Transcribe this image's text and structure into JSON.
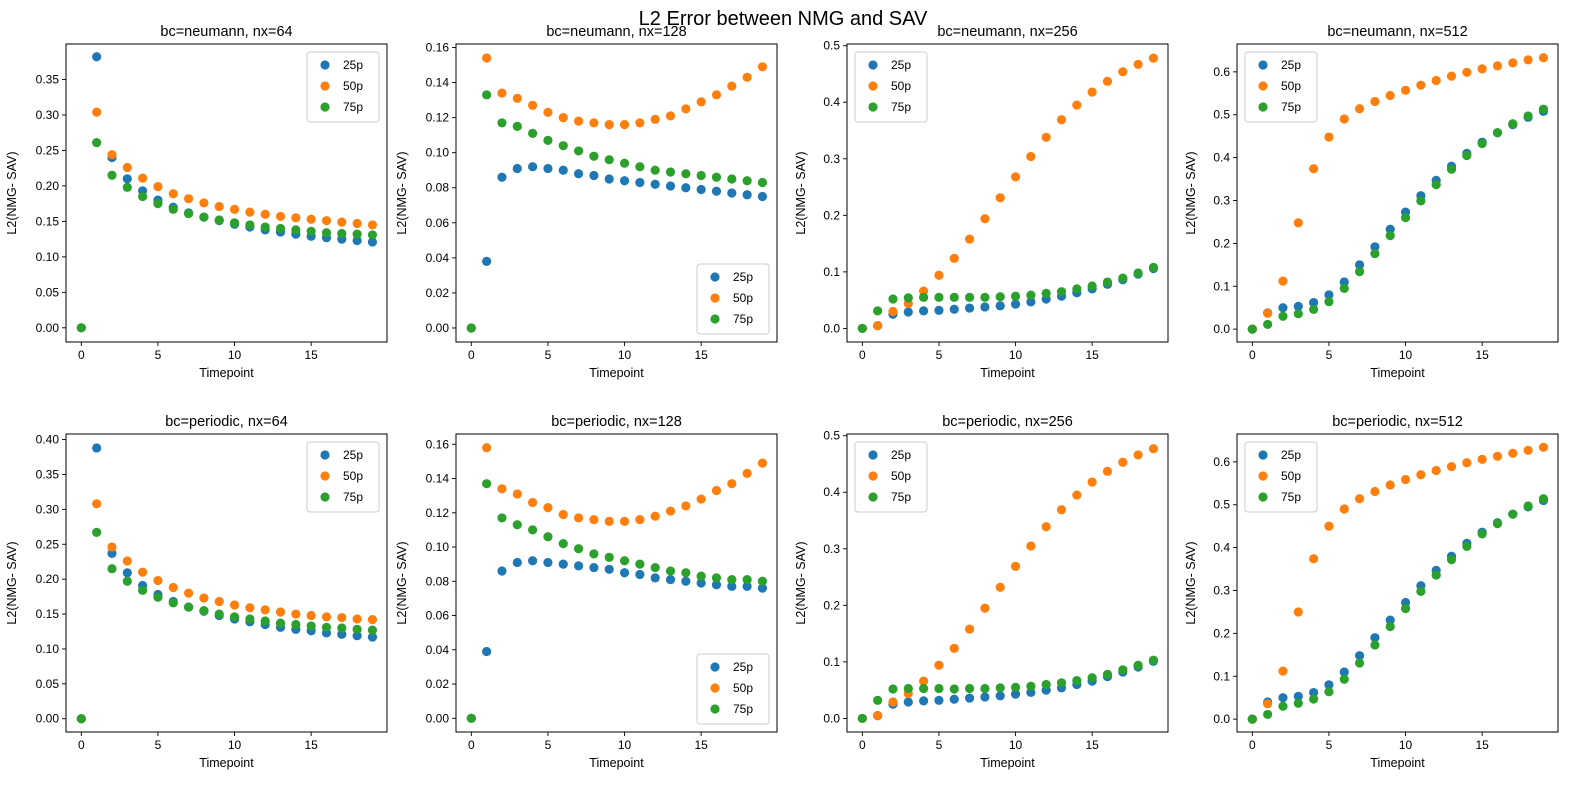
{
  "figure": {
    "suptitle": "L2 Error between NMG and SAV"
  },
  "colors": {
    "25p": "#1f77b4",
    "50p": "#ff7f0e",
    "75p": "#2ca02c"
  },
  "chart_data": [
    {
      "type": "scatter",
      "title": "bc=neumann, nx=64",
      "xlabel": "Timepoint",
      "ylabel": "L2(NMG- SAV)",
      "xlim": [
        -1,
        19.95
      ],
      "ylim": [
        -0.02,
        0.4
      ],
      "xticks": [
        0,
        5,
        10,
        15
      ],
      "yticks": [
        0,
        0.05,
        0.1,
        0.15,
        0.2,
        0.25,
        0.3,
        0.35
      ],
      "ytick_decimals": 2,
      "legend": "top-right",
      "x": [
        0,
        1,
        2,
        3,
        4,
        5,
        6,
        7,
        8,
        9,
        10,
        11,
        12,
        13,
        14,
        15,
        16,
        17,
        18,
        19
      ],
      "series": [
        {
          "name": "25p",
          "values": [
            0.0,
            0.382,
            0.24,
            0.21,
            0.193,
            0.18,
            0.17,
            0.162,
            0.156,
            0.151,
            0.146,
            0.142,
            0.138,
            0.135,
            0.132,
            0.129,
            0.127,
            0.125,
            0.123,
            0.121
          ]
        },
        {
          "name": "50p",
          "values": [
            0.0,
            0.304,
            0.244,
            0.226,
            0.211,
            0.199,
            0.189,
            0.182,
            0.176,
            0.171,
            0.167,
            0.163,
            0.16,
            0.157,
            0.155,
            0.153,
            0.151,
            0.149,
            0.147,
            0.145
          ]
        },
        {
          "name": "75p",
          "values": [
            0.0,
            0.261,
            0.215,
            0.198,
            0.185,
            0.175,
            0.167,
            0.161,
            0.156,
            0.152,
            0.148,
            0.145,
            0.142,
            0.14,
            0.138,
            0.136,
            0.134,
            0.133,
            0.132,
            0.131
          ]
        }
      ]
    },
    {
      "type": "scatter",
      "title": "bc=neumann, nx=128",
      "xlabel": "Timepoint",
      "ylabel": "L2(NMG- SAV)",
      "xlim": [
        -1,
        19.95
      ],
      "ylim": [
        -0.008,
        0.162
      ],
      "xticks": [
        0,
        5,
        10,
        15
      ],
      "yticks": [
        0,
        0.02,
        0.04,
        0.06,
        0.08,
        0.1,
        0.12,
        0.14,
        0.16
      ],
      "ytick_decimals": 2,
      "legend": "bottom-right",
      "x": [
        0,
        1,
        2,
        3,
        4,
        5,
        6,
        7,
        8,
        9,
        10,
        11,
        12,
        13,
        14,
        15,
        16,
        17,
        18,
        19
      ],
      "series": [
        {
          "name": "25p",
          "values": [
            0.0,
            0.038,
            0.086,
            0.091,
            0.092,
            0.091,
            0.09,
            0.088,
            0.087,
            0.085,
            0.084,
            0.083,
            0.082,
            0.081,
            0.08,
            0.079,
            0.078,
            0.077,
            0.076,
            0.075
          ]
        },
        {
          "name": "50p",
          "values": [
            0.0,
            0.154,
            0.134,
            0.131,
            0.127,
            0.123,
            0.12,
            0.118,
            0.117,
            0.116,
            0.116,
            0.117,
            0.119,
            0.121,
            0.125,
            0.129,
            0.133,
            0.138,
            0.143,
            0.149
          ]
        },
        {
          "name": "75p",
          "values": [
            0.0,
            0.133,
            0.117,
            0.115,
            0.111,
            0.107,
            0.104,
            0.101,
            0.098,
            0.096,
            0.094,
            0.092,
            0.09,
            0.089,
            0.088,
            0.087,
            0.086,
            0.085,
            0.084,
            0.083
          ]
        }
      ]
    },
    {
      "type": "scatter",
      "title": "bc=neumann, nx=256",
      "xlabel": "Timepoint",
      "ylabel": "L2(NMG- SAV)",
      "xlim": [
        -1,
        19.95
      ],
      "ylim": [
        -0.024,
        0.503
      ],
      "xticks": [
        0,
        5,
        10,
        15
      ],
      "yticks": [
        0,
        0.1,
        0.2,
        0.3,
        0.4,
        0.5
      ],
      "ytick_decimals": 1,
      "legend": "top-left",
      "x": [
        0,
        1,
        2,
        3,
        4,
        5,
        6,
        7,
        8,
        9,
        10,
        11,
        12,
        13,
        14,
        15,
        16,
        17,
        18,
        19
      ],
      "series": [
        {
          "name": "25p",
          "values": [
            0.0,
            0.005,
            0.025,
            0.029,
            0.031,
            0.032,
            0.034,
            0.036,
            0.038,
            0.04,
            0.043,
            0.047,
            0.052,
            0.057,
            0.063,
            0.07,
            0.078,
            0.086,
            0.096,
            0.106
          ]
        },
        {
          "name": "50p",
          "values": [
            0.0,
            0.005,
            0.03,
            0.044,
            0.066,
            0.094,
            0.124,
            0.158,
            0.194,
            0.231,
            0.268,
            0.304,
            0.338,
            0.369,
            0.395,
            0.418,
            0.437,
            0.454,
            0.467,
            0.478
          ]
        },
        {
          "name": "75p",
          "values": [
            0.0,
            0.031,
            0.052,
            0.054,
            0.055,
            0.055,
            0.055,
            0.055,
            0.055,
            0.056,
            0.057,
            0.059,
            0.062,
            0.065,
            0.07,
            0.075,
            0.082,
            0.089,
            0.098,
            0.108
          ]
        }
      ]
    },
    {
      "type": "scatter",
      "title": "bc=neumann, nx=512",
      "xlabel": "Timepoint",
      "ylabel": "L2(NMG- SAV)",
      "xlim": [
        -1,
        19.95
      ],
      "ylim": [
        -0.03,
        0.665
      ],
      "xticks": [
        0,
        5,
        10,
        15
      ],
      "yticks": [
        0,
        0.1,
        0.2,
        0.3,
        0.4,
        0.5,
        0.6
      ],
      "ytick_decimals": 1,
      "legend": "top-left",
      "x": [
        0,
        1,
        2,
        3,
        4,
        5,
        6,
        7,
        8,
        9,
        10,
        11,
        12,
        13,
        14,
        15,
        16,
        17,
        18,
        19
      ],
      "series": [
        {
          "name": "25p",
          "values": [
            0.0,
            0.038,
            0.05,
            0.053,
            0.062,
            0.08,
            0.11,
            0.15,
            0.192,
            0.233,
            0.273,
            0.311,
            0.347,
            0.38,
            0.41,
            0.436,
            0.458,
            0.477,
            0.494,
            0.508
          ]
        },
        {
          "name": "50p",
          "values": [
            0.0,
            0.037,
            0.112,
            0.248,
            0.374,
            0.448,
            0.49,
            0.514,
            0.531,
            0.545,
            0.557,
            0.569,
            0.58,
            0.59,
            0.599,
            0.607,
            0.614,
            0.621,
            0.628,
            0.633
          ]
        },
        {
          "name": "75p",
          "values": [
            0.0,
            0.011,
            0.03,
            0.036,
            0.046,
            0.064,
            0.095,
            0.134,
            0.176,
            0.218,
            0.26,
            0.299,
            0.337,
            0.373,
            0.405,
            0.433,
            0.458,
            0.479,
            0.497,
            0.513
          ]
        }
      ]
    },
    {
      "type": "scatter",
      "title": "bc=periodic, nx=64",
      "xlabel": "Timepoint",
      "ylabel": "L2(NMG- SAV)",
      "xlim": [
        -1,
        19.95
      ],
      "ylim": [
        -0.019,
        0.408
      ],
      "xticks": [
        0,
        5,
        10,
        15
      ],
      "yticks": [
        0,
        0.05,
        0.1,
        0.15,
        0.2,
        0.25,
        0.3,
        0.35,
        0.4
      ],
      "ytick_decimals": 2,
      "legend": "top-right",
      "x": [
        0,
        1,
        2,
        3,
        4,
        5,
        6,
        7,
        8,
        9,
        10,
        11,
        12,
        13,
        14,
        15,
        16,
        17,
        18,
        19
      ],
      "series": [
        {
          "name": "25p",
          "values": [
            0.0,
            0.388,
            0.237,
            0.209,
            0.191,
            0.178,
            0.168,
            0.16,
            0.154,
            0.148,
            0.143,
            0.139,
            0.135,
            0.131,
            0.128,
            0.126,
            0.123,
            0.121,
            0.119,
            0.117
          ]
        },
        {
          "name": "50p",
          "values": [
            0.0,
            0.308,
            0.246,
            0.226,
            0.21,
            0.198,
            0.188,
            0.18,
            0.173,
            0.168,
            0.163,
            0.159,
            0.156,
            0.153,
            0.15,
            0.148,
            0.146,
            0.145,
            0.143,
            0.142
          ]
        },
        {
          "name": "75p",
          "values": [
            0.0,
            0.267,
            0.215,
            0.197,
            0.184,
            0.174,
            0.166,
            0.16,
            0.155,
            0.15,
            0.146,
            0.143,
            0.14,
            0.137,
            0.135,
            0.133,
            0.131,
            0.13,
            0.128,
            0.127
          ]
        }
      ]
    },
    {
      "type": "scatter",
      "title": "bc=periodic, nx=128",
      "xlabel": "Timepoint",
      "ylabel": "L2(NMG- SAV)",
      "xlim": [
        -1,
        19.95
      ],
      "ylim": [
        -0.008,
        0.166
      ],
      "xticks": [
        0,
        5,
        10,
        15
      ],
      "yticks": [
        0,
        0.02,
        0.04,
        0.06,
        0.08,
        0.1,
        0.12,
        0.14,
        0.16
      ],
      "ytick_decimals": 2,
      "legend": "bottom-right",
      "x": [
        0,
        1,
        2,
        3,
        4,
        5,
        6,
        7,
        8,
        9,
        10,
        11,
        12,
        13,
        14,
        15,
        16,
        17,
        18,
        19
      ],
      "series": [
        {
          "name": "25p",
          "values": [
            0.0,
            0.039,
            0.086,
            0.091,
            0.092,
            0.091,
            0.09,
            0.089,
            0.088,
            0.087,
            0.085,
            0.084,
            0.082,
            0.081,
            0.08,
            0.079,
            0.078,
            0.077,
            0.077,
            0.076
          ]
        },
        {
          "name": "50p",
          "values": [
            0.0,
            0.158,
            0.134,
            0.131,
            0.126,
            0.123,
            0.119,
            0.117,
            0.116,
            0.115,
            0.115,
            0.116,
            0.118,
            0.121,
            0.124,
            0.128,
            0.133,
            0.137,
            0.143,
            0.149
          ]
        },
        {
          "name": "75p",
          "values": [
            0.0,
            0.137,
            0.117,
            0.113,
            0.11,
            0.106,
            0.102,
            0.099,
            0.096,
            0.094,
            0.092,
            0.09,
            0.088,
            0.086,
            0.085,
            0.083,
            0.082,
            0.081,
            0.081,
            0.08
          ]
        }
      ]
    },
    {
      "type": "scatter",
      "title": "bc=periodic, nx=256",
      "xlabel": "Timepoint",
      "ylabel": "L2(NMG- SAV)",
      "xlim": [
        -1,
        19.95
      ],
      "ylim": [
        -0.024,
        0.503
      ],
      "xticks": [
        0,
        5,
        10,
        15
      ],
      "yticks": [
        0,
        0.1,
        0.2,
        0.3,
        0.4,
        0.5
      ],
      "ytick_decimals": 1,
      "legend": "top-left",
      "x": [
        0,
        1,
        2,
        3,
        4,
        5,
        6,
        7,
        8,
        9,
        10,
        11,
        12,
        13,
        14,
        15,
        16,
        17,
        18,
        19
      ],
      "series": [
        {
          "name": "25p",
          "values": [
            0.0,
            0.005,
            0.025,
            0.029,
            0.031,
            0.032,
            0.034,
            0.036,
            0.038,
            0.04,
            0.043,
            0.046,
            0.05,
            0.054,
            0.06,
            0.066,
            0.074,
            0.082,
            0.091,
            0.101
          ]
        },
        {
          "name": "50p",
          "values": [
            0.0,
            0.005,
            0.029,
            0.044,
            0.066,
            0.094,
            0.124,
            0.158,
            0.195,
            0.232,
            0.269,
            0.305,
            0.339,
            0.369,
            0.395,
            0.418,
            0.437,
            0.453,
            0.466,
            0.477
          ]
        },
        {
          "name": "75p",
          "values": [
            0.0,
            0.032,
            0.052,
            0.053,
            0.053,
            0.053,
            0.052,
            0.053,
            0.053,
            0.054,
            0.055,
            0.057,
            0.06,
            0.063,
            0.067,
            0.072,
            0.078,
            0.086,
            0.094,
            0.103
          ]
        }
      ]
    },
    {
      "type": "scatter",
      "title": "bc=periodic, nx=512",
      "xlabel": "Timepoint",
      "ylabel": "L2(NMG- SAV)",
      "xlim": [
        -1,
        19.95
      ],
      "ylim": [
        -0.03,
        0.665
      ],
      "xticks": [
        0,
        5,
        10,
        15
      ],
      "yticks": [
        0,
        0.1,
        0.2,
        0.3,
        0.4,
        0.5,
        0.6
      ],
      "ytick_decimals": 1,
      "legend": "top-left",
      "x": [
        0,
        1,
        2,
        3,
        4,
        5,
        6,
        7,
        8,
        9,
        10,
        11,
        12,
        13,
        14,
        15,
        16,
        17,
        18,
        19
      ],
      "series": [
        {
          "name": "25p",
          "values": [
            0.0,
            0.04,
            0.05,
            0.053,
            0.062,
            0.08,
            0.11,
            0.148,
            0.19,
            0.231,
            0.272,
            0.311,
            0.347,
            0.38,
            0.41,
            0.436,
            0.458,
            0.478,
            0.495,
            0.51
          ]
        },
        {
          "name": "50p",
          "values": [
            0.0,
            0.036,
            0.112,
            0.25,
            0.374,
            0.45,
            0.49,
            0.514,
            0.531,
            0.546,
            0.559,
            0.57,
            0.58,
            0.589,
            0.598,
            0.606,
            0.613,
            0.62,
            0.627,
            0.634
          ]
        },
        {
          "name": "75p",
          "values": [
            0.0,
            0.011,
            0.03,
            0.037,
            0.047,
            0.064,
            0.093,
            0.131,
            0.173,
            0.216,
            0.258,
            0.298,
            0.336,
            0.372,
            0.403,
            0.432,
            0.456,
            0.478,
            0.497,
            0.514
          ]
        }
      ]
    }
  ]
}
